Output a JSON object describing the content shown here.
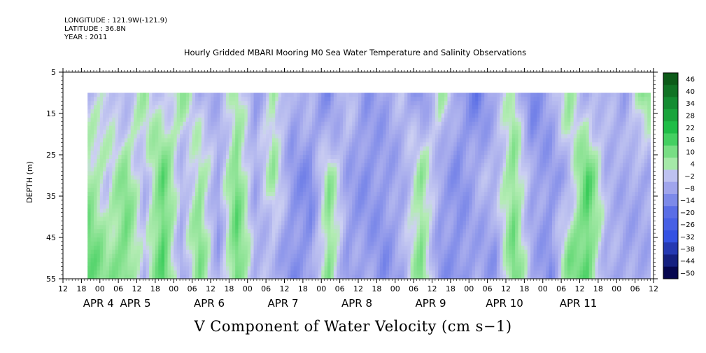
{
  "header": {
    "longitude_line": "LONGITUDE : 121.9W(-121.9)",
    "latitude_line": "LATITUDE : 36.8N",
    "year_line": "YEAR : 2011"
  },
  "chart_data": {
    "type": "heatmap",
    "title": "Hourly Gridded MBARI Mooring M0 Sea Water Temperature and Salinity Observations",
    "xlabel": "V Component of Water Velocity (cm s−1)",
    "ylabel": "DEPTH (m)",
    "y_axis": {
      "range": [
        5,
        55
      ],
      "inverted": true,
      "tick_values": [
        5,
        15,
        25,
        35,
        45,
        55
      ],
      "data_top": 10
    },
    "x_axis": {
      "range_hours": [
        0,
        192
      ],
      "unit": "hours since APR 3 12:00",
      "hour_tick_labels": [
        "12",
        "18",
        "00",
        "06",
        "12",
        "18",
        "00",
        "06",
        "12",
        "18",
        "00",
        "06",
        "12",
        "18",
        "00",
        "06",
        "12",
        "18",
        "00",
        "06",
        "12",
        "18",
        "00",
        "06",
        "12",
        "18",
        "00",
        "06",
        "12",
        "18",
        "00",
        "06",
        "12"
      ],
      "date_labels": [
        {
          "label": "APR  4",
          "hour": 12
        },
        {
          "label": "APR  5",
          "hour": 24
        },
        {
          "label": "APR  6",
          "hour": 48
        },
        {
          "label": "APR  7",
          "hour": 72
        },
        {
          "label": "APR  8",
          "hour": 96
        },
        {
          "label": "APR  9",
          "hour": 120
        },
        {
          "label": "APR 10",
          "hour": 144
        },
        {
          "label": "APR 11",
          "hour": 168
        }
      ],
      "data_range_hours": [
        8,
        191
      ]
    },
    "colorbar": {
      "labels": [
        "46",
        "40",
        "34",
        "28",
        "22",
        "16",
        "10",
        "4",
        "−2",
        "−8",
        "−14",
        "−20",
        "−26",
        "−32",
        "−38",
        "−44",
        "−50"
      ],
      "range": [
        -50,
        50
      ]
    },
    "column_profiles": {
      "description_of_values": "estimated velocity (cm/s) at depths 10 / 30 / 50 m per 6-hour column",
      "hours": [
        8,
        14,
        20,
        26,
        32,
        38,
        44,
        50,
        56,
        62,
        68,
        74,
        80,
        86,
        92,
        98,
        104,
        110,
        116,
        122,
        128,
        134,
        140,
        146,
        152,
        158,
        164,
        170,
        176,
        182,
        188
      ],
      "top": [
        -4,
        2,
        -6,
        4,
        -3,
        6,
        -6,
        -5,
        3,
        -10,
        4,
        -8,
        -3,
        -14,
        -2,
        -10,
        -8,
        -4,
        -12,
        4,
        -8,
        -16,
        -6,
        2,
        -14,
        -8,
        6,
        -6,
        -5,
        -8,
        8
      ],
      "mid": [
        6,
        -2,
        8,
        -4,
        12,
        -6,
        6,
        -8,
        10,
        -6,
        4,
        -10,
        -14,
        6,
        -8,
        -12,
        -10,
        -6,
        6,
        -8,
        -12,
        -6,
        -4,
        8,
        -8,
        -10,
        -6,
        14,
        -4,
        -6,
        -8
      ],
      "bottom": [
        12,
        6,
        10,
        -4,
        14,
        -6,
        8,
        -8,
        12,
        -6,
        -4,
        -12,
        -10,
        8,
        -10,
        -8,
        -12,
        -6,
        8,
        -10,
        -12,
        -8,
        -10,
        10,
        -6,
        -12,
        8,
        12,
        -6,
        -8,
        -6
      ]
    },
    "colors": {
      "positive_high": "#0b4a10",
      "positive_mid": "#21c54a",
      "positive_low": "#b4ecb4",
      "negative_low": "#b4b8ee",
      "negative_mid": "#3452e3",
      "negative_high": "#06074f"
    }
  }
}
